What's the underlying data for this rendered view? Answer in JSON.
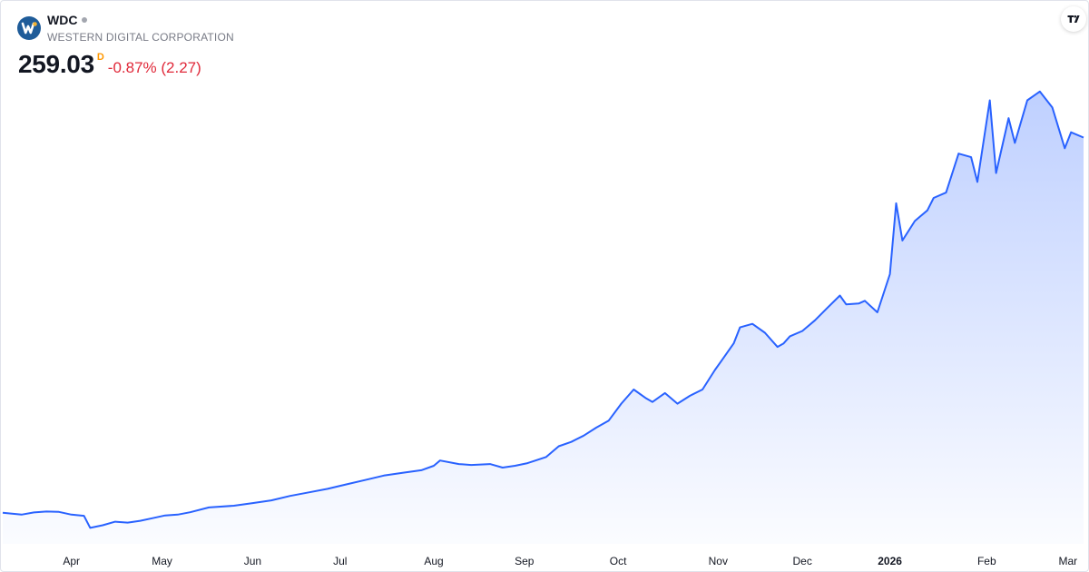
{
  "header": {
    "ticker": "WDC",
    "company_name": "WESTERN DIGITAL CORPORATION",
    "price": "259.03",
    "period_badge": "D",
    "change": "-0.87% (2.27)"
  },
  "colors": {
    "line": "#2962ff",
    "area_top": "#2962ff",
    "change_negative": "#e0293a",
    "period_badge": "#ff9800",
    "logo_bg": "#1f5c99",
    "logo_accent": "#f2b233"
  },
  "icons": {
    "company_logo": "western-digital-logo",
    "brand_logo": "tradingview-logo"
  },
  "chart_data": {
    "type": "area",
    "title": "",
    "xlabel": "",
    "ylabel": "",
    "ylim": [
      30,
      290
    ],
    "grid": false,
    "x_tick_labels": [
      "Apr",
      "May",
      "Jun",
      "Jul",
      "Aug",
      "Sep",
      "Oct",
      "Nov",
      "Dec",
      "2026",
      "Feb",
      "Mar"
    ],
    "x_tick_bold": [
      "2026"
    ],
    "x_ticks_day": [
      22,
      51,
      80,
      108,
      138,
      167,
      197,
      229,
      256,
      284,
      315,
      341
    ],
    "x_day_range": [
      0,
      346
    ],
    "series": [
      {
        "x_day": [
          0,
          6,
          10,
          14,
          18,
          22,
          26,
          28,
          32,
          36,
          40,
          44,
          48,
          52,
          56,
          60,
          66,
          74,
          80,
          86,
          92,
          98,
          104,
          110,
          116,
          122,
          128,
          134,
          138,
          140,
          146,
          150,
          156,
          160,
          164,
          168,
          174,
          178,
          182,
          186,
          190,
          194,
          198,
          202,
          206,
          208,
          212,
          216,
          220,
          224,
          228,
          230,
          234,
          236,
          240,
          244,
          248,
          250,
          252,
          256,
          260,
          264,
          268,
          270,
          274,
          276,
          280,
          284,
          286,
          288,
          292,
          296,
          298,
          302,
          306,
          310,
          312,
          316,
          318,
          322,
          324,
          328,
          332,
          336,
          340,
          342,
          346
        ],
        "values": [
          47.5,
          46.5,
          47.7,
          48.2,
          48.0,
          46.5,
          45.8,
          39.0,
          40.5,
          42.5,
          42.0,
          43.0,
          44.5,
          46.0,
          46.5,
          47.8,
          50.5,
          51.5,
          53.0,
          54.5,
          57.0,
          59.0,
          61.0,
          63.5,
          66.0,
          68.5,
          70.0,
          71.5,
          74.0,
          77.0,
          75.0,
          74.5,
          75.0,
          73.0,
          74.0,
          75.5,
          79.0,
          85.0,
          87.5,
          91.0,
          95.5,
          99.5,
          109.0,
          117.0,
          112.0,
          110.0,
          115.0,
          109.0,
          113.5,
          117.0,
          128.0,
          133.0,
          143.0,
          152.0,
          154.0,
          149.0,
          141.0,
          143.0,
          147.0,
          150.0,
          156.0,
          163.0,
          170.0,
          165.0,
          165.5,
          167.0,
          160.5,
          182.0,
          222.0,
          201.0,
          212.0,
          218.0,
          225.0,
          228.0,
          250.0,
          248.0,
          234.0,
          280.0,
          239.0,
          270.0,
          256.0,
          280.0,
          285.0,
          276.0,
          253.0,
          262.0,
          259.03
        ]
      }
    ]
  }
}
